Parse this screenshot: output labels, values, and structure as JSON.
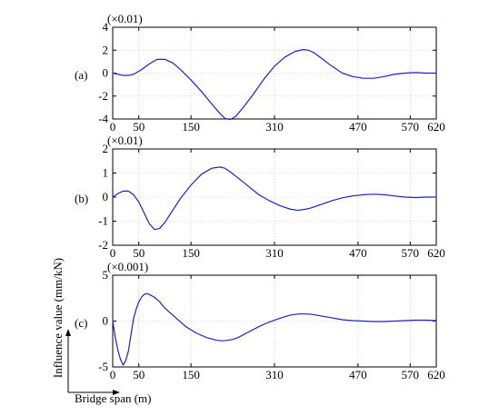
{
  "chart_data": [
    {
      "type": "line",
      "panel_label": "(a)",
      "scale_label": "(×0.01)",
      "xlim": [
        0,
        620
      ],
      "ylim": [
        -4,
        4
      ],
      "xticks": [
        0,
        50,
        150,
        310,
        470,
        570,
        620
      ],
      "yticks": [
        4,
        2,
        0,
        -2,
        -4
      ],
      "color": "#1f1fd0",
      "zero_line": true,
      "series": [
        {
          "x": [
            0,
            10,
            20,
            30,
            40,
            55,
            70,
            85,
            100,
            115,
            130,
            150,
            170,
            190,
            205,
            215,
            225,
            235,
            250,
            270,
            290,
            310,
            330,
            350,
            365,
            375,
            385,
            400,
            420,
            440,
            460,
            480,
            500,
            520,
            540,
            560,
            580,
            600,
            620
          ],
          "y": [
            0,
            -0.1,
            -0.2,
            -0.2,
            -0.1,
            0.3,
            0.8,
            1.2,
            1.2,
            0.9,
            0.3,
            -0.6,
            -1.6,
            -2.7,
            -3.5,
            -3.95,
            -4.05,
            -3.8,
            -3.0,
            -1.8,
            -0.5,
            0.6,
            1.4,
            1.9,
            2.05,
            2.0,
            1.8,
            1.3,
            0.6,
            0.0,
            -0.3,
            -0.45,
            -0.45,
            -0.3,
            -0.1,
            0.0,
            0.05,
            0.0,
            0.0
          ]
        }
      ]
    },
    {
      "type": "line",
      "panel_label": "(b)",
      "scale_label": "(×0.01)",
      "xlim": [
        0,
        620
      ],
      "ylim": [
        -2,
        2
      ],
      "xticks": [
        0,
        50,
        150,
        310,
        470,
        570,
        620
      ],
      "yticks": [
        2,
        1,
        0,
        -1,
        -2
      ],
      "color": "#1f1fd0",
      "zero_line": true,
      "series": [
        {
          "x": [
            0,
            10,
            20,
            30,
            40,
            50,
            60,
            70,
            80,
            90,
            100,
            115,
            130,
            150,
            170,
            190,
            205,
            215,
            225,
            240,
            260,
            280,
            300,
            320,
            340,
            355,
            370,
            380,
            400,
            420,
            440,
            460,
            480,
            500,
            520,
            540,
            560,
            580,
            600,
            620
          ],
          "y": [
            0,
            0.15,
            0.25,
            0.25,
            0.1,
            -0.2,
            -0.65,
            -1.1,
            -1.35,
            -1.3,
            -1.05,
            -0.55,
            -0.05,
            0.5,
            0.95,
            1.2,
            1.25,
            1.2,
            1.05,
            0.8,
            0.45,
            0.1,
            -0.15,
            -0.35,
            -0.5,
            -0.55,
            -0.5,
            -0.45,
            -0.3,
            -0.15,
            -0.03,
            0.05,
            0.1,
            0.12,
            0.1,
            0.05,
            0.0,
            -0.02,
            0.0,
            0.0
          ]
        }
      ]
    },
    {
      "type": "line",
      "panel_label": "(c)",
      "scale_label": "(×0.001)",
      "xlim": [
        0,
        620
      ],
      "ylim": [
        -5,
        5
      ],
      "xticks": [
        0,
        50,
        150,
        310,
        470,
        570,
        620
      ],
      "yticks": [
        5,
        0,
        -5
      ],
      "color": "#1f1fd0",
      "zero_line": false,
      "series": [
        {
          "x": [
            0,
            5,
            10,
            15,
            20,
            25,
            30,
            35,
            40,
            45,
            50,
            55,
            60,
            65,
            70,
            80,
            90,
            100,
            120,
            140,
            160,
            180,
            200,
            210,
            220,
            230,
            240,
            260,
            280,
            300,
            320,
            340,
            360,
            380,
            400,
            420,
            440,
            460,
            480,
            500,
            520,
            540,
            560,
            580,
            600,
            620
          ],
          "y": [
            0,
            -1.8,
            -3.2,
            -4.2,
            -4.8,
            -4.3,
            -3.3,
            -1.5,
            0.3,
            1.3,
            2.1,
            2.6,
            2.9,
            3.0,
            2.9,
            2.6,
            2.1,
            1.4,
            0.4,
            -0.6,
            -1.3,
            -1.8,
            -2.1,
            -2.15,
            -2.1,
            -2.0,
            -1.8,
            -1.2,
            -0.6,
            -0.1,
            0.3,
            0.65,
            0.8,
            0.75,
            0.55,
            0.35,
            0.15,
            0.05,
            0.0,
            -0.05,
            -0.05,
            0.0,
            0.05,
            0.1,
            0.1,
            0.05
          ]
        }
      ]
    }
  ],
  "y_axis_title": "Influence value (mm/kN)",
  "x_axis_title": "Bridge span (m)"
}
